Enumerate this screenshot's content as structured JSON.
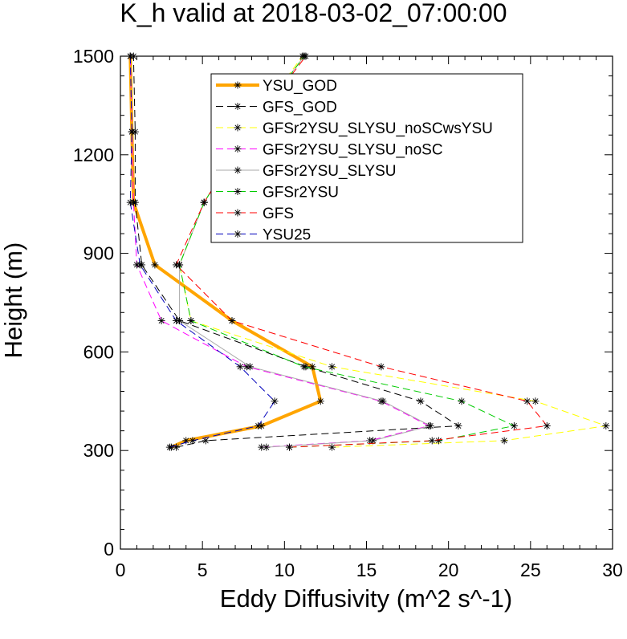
{
  "chart_data": {
    "type": "line",
    "title": "K_h valid at 2018-03-02_07:00:00",
    "xlabel": "Eddy Diffusivity (m^2 s^-1)",
    "ylabel": "Height (m)",
    "xlim": [
      0,
      30
    ],
    "ylim": [
      0,
      1500
    ],
    "xticks": [
      0,
      5,
      10,
      15,
      20,
      25,
      30
    ],
    "yticks": [
      0,
      300,
      600,
      900,
      1200,
      1500
    ],
    "legend_position": "top-right inside",
    "grid": false,
    "series": [
      {
        "name": "YSU_GOD",
        "color": "#ffa500",
        "dash": "solid",
        "width": 4,
        "points": [
          [
            3.1,
            310
          ],
          [
            4.0,
            330
          ],
          [
            8.6,
            375
          ],
          [
            12.2,
            450
          ],
          [
            11.7,
            555
          ],
          [
            6.8,
            695
          ],
          [
            2.1,
            865
          ],
          [
            0.8,
            1055
          ],
          [
            0.7,
            1270
          ],
          [
            0.6,
            1500
          ]
        ]
      },
      {
        "name": "GFS_GOD",
        "color": "#000000",
        "dash": "dashed",
        "width": 1,
        "points": [
          [
            3.4,
            310
          ],
          [
            5.2,
            330
          ],
          [
            20.6,
            375
          ],
          [
            18.3,
            450
          ],
          [
            11.3,
            555
          ],
          [
            3.6,
            695
          ],
          [
            1.3,
            865
          ],
          [
            0.9,
            1055
          ],
          [
            0.9,
            1270
          ],
          [
            0.8,
            1500
          ]
        ]
      },
      {
        "name": "GFSr2YSU_SLYSU_noSCwsYSU",
        "color": "#ffff00",
        "dash": "dashed",
        "width": 1,
        "points": [
          [
            12.9,
            310
          ],
          [
            23.4,
            330
          ],
          [
            29.6,
            375
          ],
          [
            25.3,
            450
          ],
          [
            12.9,
            555
          ],
          [
            4.3,
            695
          ],
          [
            3.6,
            865
          ],
          [
            5.1,
            1055
          ],
          [
            7.7,
            1270
          ],
          [
            11.1,
            1500
          ]
        ]
      },
      {
        "name": "GFSr2YSU_SLYSU_noSC",
        "color": "#ff00ff",
        "dash": "dashed",
        "width": 1,
        "points": [
          [
            8.6,
            310
          ],
          [
            15.2,
            330
          ],
          [
            18.8,
            375
          ],
          [
            15.9,
            450
          ],
          [
            7.7,
            555
          ],
          [
            2.5,
            695
          ],
          [
            1.0,
            865
          ],
          [
            0.8,
            1055
          ],
          [
            0.7,
            1270
          ],
          [
            0.6,
            1500
          ]
        ]
      },
      {
        "name": "GFSr2YSU_SLYSU",
        "color": "#aaaaaa",
        "dash": "solid",
        "width": 1,
        "points": [
          [
            8.9,
            310
          ],
          [
            15.4,
            330
          ],
          [
            18.9,
            375
          ],
          [
            16.0,
            450
          ],
          [
            7.9,
            555
          ],
          [
            3.6,
            695
          ],
          [
            3.6,
            865
          ],
          [
            5.1,
            1055
          ],
          [
            7.7,
            1270
          ],
          [
            11.2,
            1500
          ]
        ]
      },
      {
        "name": "GFSr2YSU",
        "color": "#00cc00",
        "dash": "dashed",
        "width": 1,
        "points": [
          [
            10.3,
            310
          ],
          [
            19.4,
            330
          ],
          [
            24.0,
            375
          ],
          [
            20.8,
            450
          ],
          [
            11.2,
            555
          ],
          [
            4.3,
            695
          ],
          [
            3.6,
            865
          ],
          [
            5.1,
            1055
          ],
          [
            7.8,
            1270
          ],
          [
            11.2,
            1500
          ]
        ]
      },
      {
        "name": "GFS",
        "color": "#ff0000",
        "dash": "dashed",
        "width": 1,
        "points": [
          [
            10.3,
            310
          ],
          [
            19.0,
            330
          ],
          [
            26.0,
            375
          ],
          [
            24.8,
            450
          ],
          [
            15.9,
            555
          ],
          [
            6.8,
            695
          ],
          [
            3.4,
            865
          ],
          [
            5.1,
            1055
          ],
          [
            7.8,
            1270
          ],
          [
            11.3,
            1500
          ]
        ]
      },
      {
        "name": "YSU25",
        "color": "#0000bb",
        "dash": "dashed",
        "width": 1,
        "points": [
          [
            3.0,
            310
          ],
          [
            4.4,
            330
          ],
          [
            8.4,
            375
          ],
          [
            9.4,
            450
          ],
          [
            7.3,
            555
          ],
          [
            3.4,
            695
          ],
          [
            1.2,
            865
          ],
          [
            0.6,
            1055
          ],
          [
            0.7,
            1270
          ],
          [
            0.6,
            1500
          ]
        ]
      }
    ]
  }
}
